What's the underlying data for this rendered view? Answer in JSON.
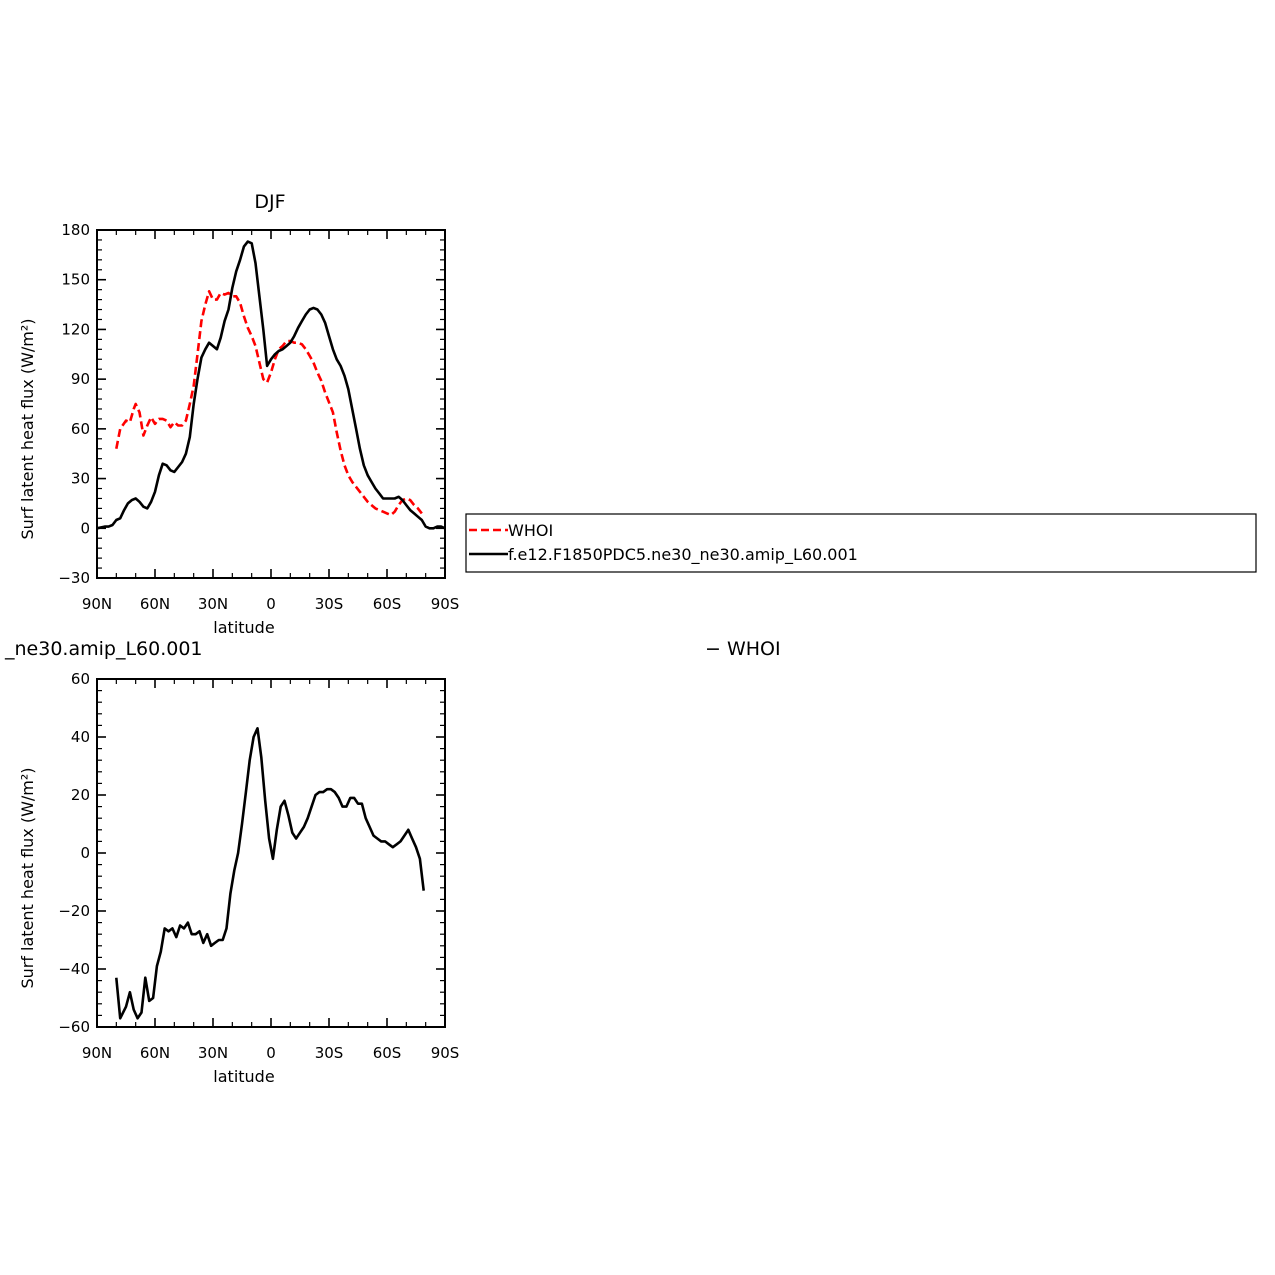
{
  "chart_data": [
    {
      "type": "line",
      "title": "DJF",
      "xlabel": "latitude",
      "ylabel": "Surf latent heat flux (W/m²)",
      "xlim": [
        90,
        -90
      ],
      "ylim": [
        -30,
        180
      ],
      "xticks": [
        90,
        60,
        30,
        0,
        -30,
        -60,
        -90
      ],
      "xtick_labels": [
        "90N",
        "60N",
        "30N",
        "0",
        "30S",
        "60S",
        "90S"
      ],
      "yticks": [
        -30,
        0,
        30,
        60,
        90,
        120,
        150,
        180
      ],
      "ytick_labels": [
        "−30",
        "0",
        "30",
        "60",
        "90",
        "120",
        "150",
        "180"
      ],
      "legend_position": "right",
      "series": [
        {
          "name": "WHOI",
          "color": "#ff0000",
          "dash": "dashed",
          "x": [
            80,
            78,
            75,
            73,
            71,
            70,
            68,
            66,
            64,
            62,
            60,
            58,
            56,
            54,
            52,
            50,
            48,
            46,
            44,
            42,
            40,
            38,
            36,
            34,
            32,
            30,
            28,
            26,
            24,
            22,
            20,
            18,
            16,
            14,
            12,
            10,
            8,
            6,
            4,
            2,
            0,
            -2,
            -4,
            -6,
            -8,
            -10,
            -12,
            -14,
            -16,
            -18,
            -20,
            -22,
            -24,
            -26,
            -28,
            -30,
            -32,
            -34,
            -36,
            -38,
            -40,
            -42,
            -44,
            -46,
            -48,
            -50,
            -52,
            -54,
            -56,
            -58,
            -60,
            -62,
            -64,
            -66,
            -68,
            -70,
            -72,
            -74,
            -76,
            -78
          ],
          "values": [
            48,
            60,
            65,
            64,
            72,
            75,
            70,
            56,
            62,
            67,
            63,
            66,
            66,
            65,
            61,
            64,
            62,
            62,
            65,
            75,
            86,
            105,
            125,
            135,
            143,
            138,
            138,
            142,
            141,
            142,
            140,
            140,
            136,
            128,
            121,
            116,
            110,
            100,
            90,
            88,
            94,
            102,
            108,
            110,
            113,
            113,
            112,
            112,
            111,
            108,
            104,
            100,
            94,
            89,
            82,
            76,
            70,
            58,
            47,
            38,
            32,
            28,
            25,
            22,
            19,
            16,
            14,
            12,
            11,
            10,
            9,
            8,
            10,
            14,
            17,
            18,
            17,
            14,
            12,
            9
          ]
        },
        {
          "name": "f.e12.F1850PDC5.ne30_ne30.amip_L60.001",
          "color": "#000000",
          "dash": "solid",
          "x": [
            90,
            86,
            84,
            82,
            80,
            78,
            76,
            74,
            72,
            70,
            68,
            66,
            64,
            62,
            60,
            58,
            56,
            54,
            52,
            50,
            48,
            46,
            44,
            42,
            40,
            38,
            36,
            34,
            32,
            30,
            28,
            26,
            24,
            22,
            20,
            18,
            16,
            14,
            12,
            10,
            8,
            6,
            4,
            2,
            0,
            -2,
            -4,
            -6,
            -8,
            -10,
            -12,
            -14,
            -16,
            -18,
            -20,
            -22,
            -24,
            -26,
            -28,
            -30,
            -32,
            -34,
            -36,
            -38,
            -40,
            -42,
            -44,
            -46,
            -48,
            -50,
            -52,
            -54,
            -56,
            -58,
            -60,
            -62,
            -64,
            -66,
            -68,
            -70,
            -72,
            -74,
            -76,
            -78,
            -80,
            -82,
            -84,
            -86,
            -88,
            -90
          ],
          "values": [
            0,
            1,
            1,
            2,
            5,
            6,
            11,
            15,
            17,
            18,
            16,
            13,
            12,
            16,
            22,
            32,
            39,
            38,
            35,
            34,
            37,
            40,
            45,
            55,
            75,
            90,
            103,
            108,
            112,
            110,
            108,
            115,
            125,
            132,
            145,
            155,
            162,
            170,
            173,
            172,
            160,
            140,
            120,
            98,
            102,
            105,
            107,
            108,
            110,
            112,
            116,
            121,
            125,
            129,
            132,
            133,
            132,
            129,
            124,
            116,
            108,
            102,
            98,
            92,
            84,
            72,
            60,
            48,
            38,
            32,
            28,
            24,
            21,
            18,
            18,
            18,
            18,
            19,
            17,
            14,
            11,
            9,
            7,
            5,
            1,
            0,
            0,
            1,
            1,
            0
          ]
        }
      ]
    },
    {
      "type": "line",
      "title": "_ne30.amip_L60.001",
      "title_right": "− WHOI",
      "xlabel": "latitude",
      "ylabel": "Surf latent heat flux (W/m²)",
      "xlim": [
        90,
        -90
      ],
      "ylim": [
        -60,
        60
      ],
      "xticks": [
        90,
        60,
        30,
        0,
        -30,
        -60,
        -90
      ],
      "xtick_labels": [
        "90N",
        "60N",
        "30N",
        "0",
        "30S",
        "60S",
        "90S"
      ],
      "yticks": [
        -60,
        -40,
        -20,
        0,
        20,
        40,
        60
      ],
      "ytick_labels": [
        "−60",
        "−40",
        "−20",
        "0",
        "20",
        "40",
        "60"
      ],
      "series": [
        {
          "color": "#000000",
          "dash": "solid",
          "x": [
            80,
            78,
            75,
            73,
            71,
            69,
            67,
            65,
            63,
            61,
            59,
            57,
            55,
            53,
            51,
            49,
            47,
            45,
            43,
            41,
            39,
            37,
            35,
            33,
            31,
            29,
            27,
            25,
            23,
            21,
            19,
            17,
            15,
            13,
            11,
            9,
            7,
            5,
            3,
            1,
            -1,
            -3,
            -5,
            -7,
            -9,
            -11,
            -13,
            -15,
            -17,
            -19,
            -21,
            -23,
            -25,
            -27,
            -29,
            -31,
            -33,
            -35,
            -37,
            -39,
            -41,
            -43,
            -45,
            -47,
            -49,
            -51,
            -53,
            -55,
            -57,
            -59,
            -61,
            -63,
            -65,
            -67,
            -69,
            -71,
            -73,
            -75,
            -77,
            -79
          ],
          "values": [
            -43,
            -57,
            -53,
            -48,
            -54,
            -57,
            -55,
            -43,
            -51,
            -50,
            -39,
            -34,
            -26,
            -27,
            -26,
            -29,
            -25,
            -26,
            -24,
            -28,
            -28,
            -27,
            -31,
            -28,
            -32,
            -31,
            -30,
            -30,
            -26,
            -14,
            -6,
            0,
            10,
            21,
            32,
            40,
            43,
            33,
            18,
            5,
            -2,
            8,
            16,
            18,
            13,
            7,
            5,
            7,
            9,
            12,
            16,
            20,
            21,
            21,
            22,
            22,
            21,
            19,
            16,
            16,
            19,
            19,
            17,
            17,
            12,
            9,
            6,
            5,
            4,
            4,
            3,
            2,
            3,
            4,
            6,
            8,
            5,
            2,
            -2,
            -13
          ]
        }
      ]
    }
  ]
}
